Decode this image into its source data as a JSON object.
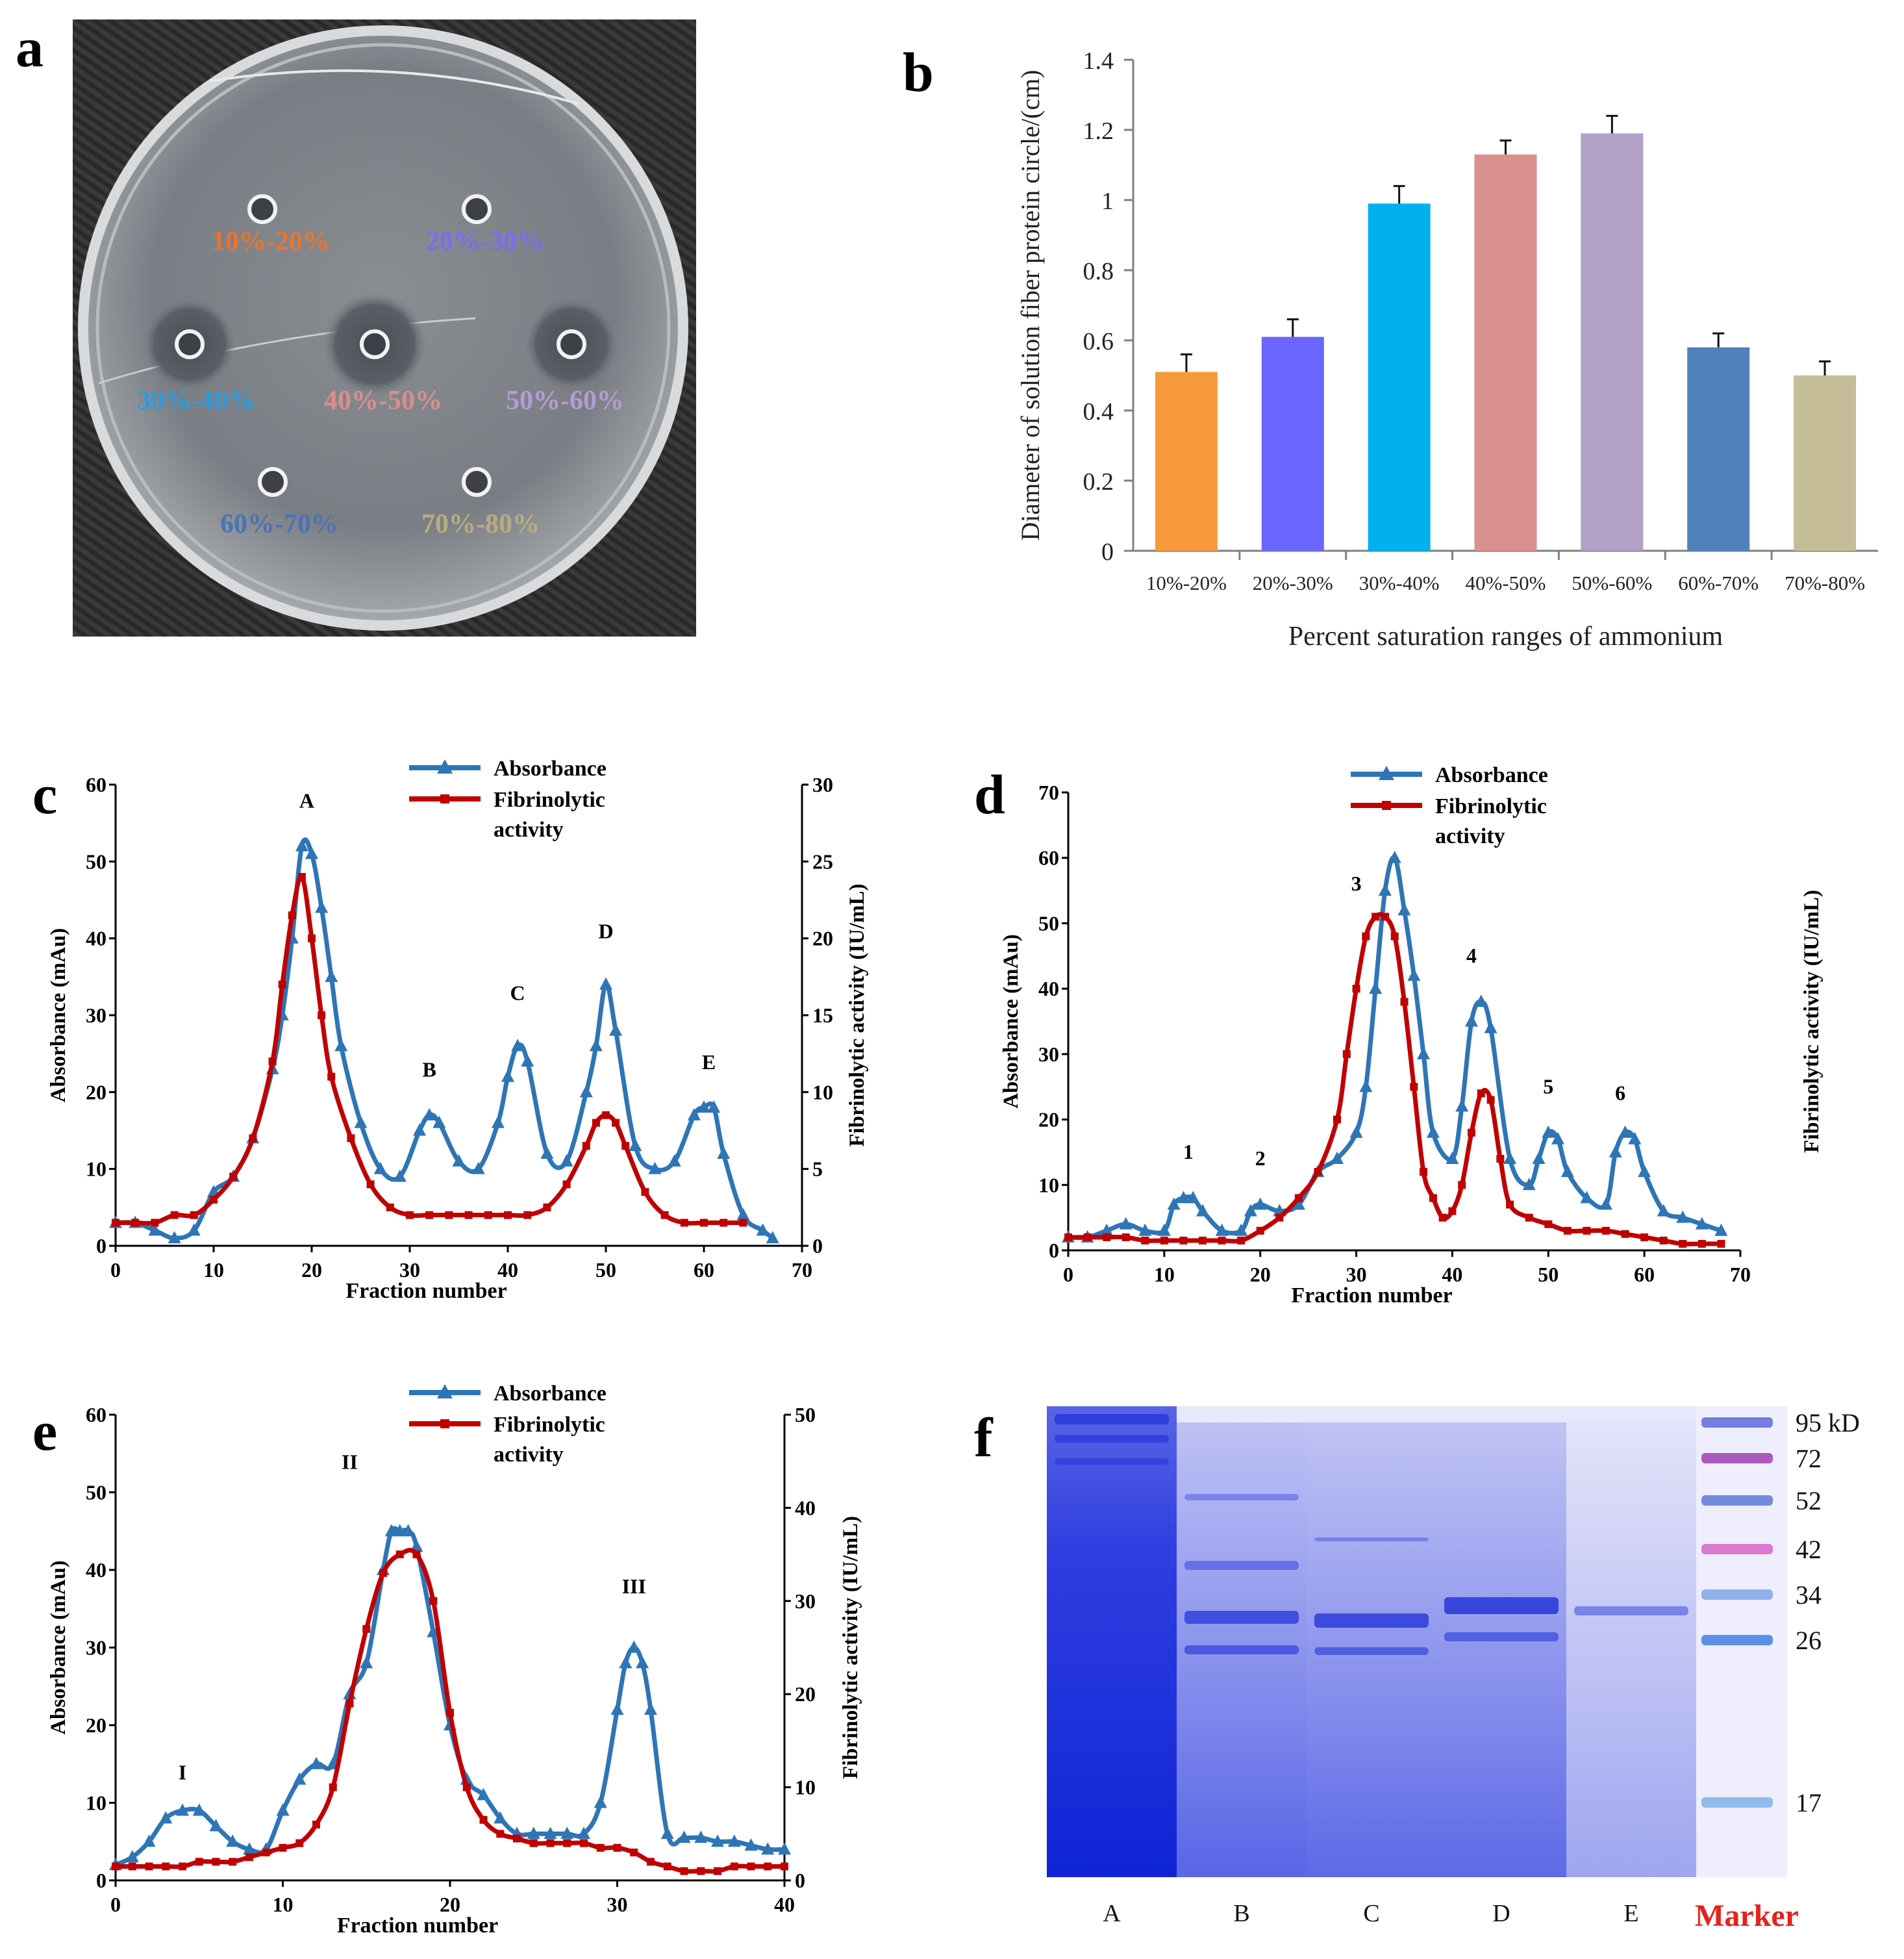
{
  "panels": {
    "a": {
      "label": "a",
      "ranges": [
        {
          "text": "10%-20%",
          "color": "#e8762b"
        },
        {
          "text": "20%-30%",
          "color": "#7a6cf0"
        },
        {
          "text": "30%-40%",
          "color": "#2d9be0"
        },
        {
          "text": "40%-50%",
          "color": "#d99089"
        },
        {
          "text": "50%-60%",
          "color": "#b59bd3"
        },
        {
          "text": "60%-70%",
          "color": "#4a73b7"
        },
        {
          "text": "70%-80%",
          "color": "#b9ac7c"
        }
      ]
    },
    "b": {
      "label": "b"
    },
    "c": {
      "label": "c"
    },
    "d": {
      "label": "d"
    },
    "e": {
      "label": "e"
    },
    "f": {
      "label": "f",
      "lanes": [
        "A",
        "B",
        "C",
        "D",
        "E"
      ],
      "marker_label": "Marker",
      "marker_label_color": "#e5221b",
      "mw_labels": [
        "95 kD",
        "72",
        "52",
        "42",
        "34",
        "26",
        "17"
      ]
    }
  },
  "chart_data": [
    {
      "id": "b",
      "type": "bar",
      "categories": [
        "10%-20%",
        "20%-30%",
        "30%-40%",
        "40%-50%",
        "50%-60%",
        "60%-70%",
        "70%-80%"
      ],
      "values": [
        0.51,
        0.61,
        0.99,
        1.13,
        1.19,
        0.58,
        0.5
      ],
      "errors": [
        0.05,
        0.05,
        0.05,
        0.04,
        0.05,
        0.04,
        0.04
      ],
      "colors": [
        "#f79a3c",
        "#6b66ff",
        "#00b0ef",
        "#d9908f",
        "#b2a0c6",
        "#4f81bd",
        "#c4bd97"
      ],
      "ylabel": "Diameter of solution fiber protein  circle/(cm)",
      "xlabel": "Percent saturation ranges of ammonium",
      "ylim": [
        0,
        1.4
      ],
      "yticks": [
        0,
        0.2,
        0.4,
        0.6,
        0.8,
        1,
        1.2,
        1.4
      ],
      "ytick_labels": [
        "0",
        "0.2",
        "0.4",
        "0.6",
        "0.8",
        "1",
        "1.2",
        "1.4"
      ]
    },
    {
      "id": "c",
      "type": "line",
      "xlabel": "Fraction number",
      "ylabel": "Absorbance (mAu)",
      "y2label": "Fibrinolytic  activity (IU/mL)",
      "xlim": [
        0,
        70
      ],
      "ylim": [
        0,
        60
      ],
      "y2lim": [
        0,
        30
      ],
      "xticks": [
        0,
        10,
        20,
        30,
        40,
        50,
        60,
        70
      ],
      "yticks": [
        0,
        10,
        20,
        30,
        40,
        50,
        60
      ],
      "y2ticks": [
        0,
        5,
        10,
        15,
        20,
        25,
        30
      ],
      "legend": [
        "Absorbance",
        "Fibrinolytic activity"
      ],
      "peak_labels": [
        {
          "text": "A",
          "x": 19.5,
          "y": 57
        },
        {
          "text": "B",
          "x": 32,
          "y": 22
        },
        {
          "text": "C",
          "x": 41,
          "y": 32
        },
        {
          "text": "D",
          "x": 50,
          "y": 40
        },
        {
          "text": "E",
          "x": 60.5,
          "y": 23
        }
      ],
      "series": [
        {
          "name": "Absorbance",
          "color": "#2e75b6",
          "marker": "triangle",
          "x": [
            0,
            2,
            4,
            6,
            8,
            10,
            12,
            14,
            16,
            17,
            18,
            19,
            20,
            21,
            22,
            23,
            25,
            27,
            29,
            31,
            32,
            33,
            35,
            37,
            39,
            40,
            41,
            42,
            44,
            46,
            48,
            49,
            50,
            51,
            53,
            55,
            57,
            59,
            60,
            61,
            62,
            64,
            66,
            67
          ],
          "y": [
            3,
            3,
            2,
            1,
            2,
            7,
            9,
            14,
            23,
            30,
            40,
            52,
            51,
            44,
            35,
            26,
            16,
            10,
            9,
            15,
            17,
            16,
            11,
            10,
            16,
            22,
            26,
            24,
            12,
            11,
            20,
            26,
            34,
            28,
            13,
            10,
            11,
            17,
            18,
            18,
            12,
            4,
            2,
            1
          ]
        },
        {
          "name": "Fibrinolytic activity",
          "color": "#c00000",
          "marker": "square",
          "x": [
            0,
            2,
            4,
            6,
            8,
            10,
            12,
            14,
            16,
            17,
            18,
            19,
            20,
            21,
            22,
            24,
            26,
            28,
            30,
            32,
            34,
            36,
            38,
            40,
            42,
            44,
            46,
            48,
            49,
            50,
            51,
            52,
            54,
            56,
            58,
            60,
            62,
            64
          ],
          "y": [
            1.5,
            1.5,
            1.5,
            2,
            2,
            3,
            4.5,
            7,
            12,
            17,
            21.5,
            24,
            20,
            15,
            11,
            7,
            4,
            2.5,
            2,
            2,
            2,
            2,
            2,
            2,
            2,
            2.5,
            4,
            6.5,
            8,
            8.5,
            8,
            6.5,
            3.5,
            2,
            1.5,
            1.5,
            1.5,
            1.5
          ]
        }
      ]
    },
    {
      "id": "d",
      "type": "line",
      "xlabel": "Fraction number",
      "ylabel": "Absorbance (mAu)",
      "y2label": "Fibrinolytic  activity (IU/mL)",
      "xlim": [
        0,
        70
      ],
      "ylim": [
        0,
        70
      ],
      "xticks": [
        0,
        10,
        20,
        30,
        40,
        50,
        60,
        70
      ],
      "yticks": [
        0,
        10,
        20,
        30,
        40,
        50,
        60,
        70
      ],
      "legend": [
        "Absorbance",
        "Fibrinolytic activity"
      ],
      "peak_labels": [
        {
          "text": "1",
          "x": 12.5,
          "y": 14
        },
        {
          "text": "2",
          "x": 20,
          "y": 13
        },
        {
          "text": "3",
          "x": 30,
          "y": 55
        },
        {
          "text": "4",
          "x": 42,
          "y": 44
        },
        {
          "text": "5",
          "x": 50,
          "y": 24
        },
        {
          "text": "6",
          "x": 57.5,
          "y": 23
        }
      ],
      "series": [
        {
          "name": "Absorbance",
          "color": "#2e75b6",
          "marker": "triangle",
          "x": [
            0,
            2,
            4,
            6,
            8,
            10,
            11,
            12,
            13,
            14,
            16,
            18,
            19,
            20,
            22,
            24,
            26,
            28,
            30,
            31,
            32,
            33,
            34,
            35,
            36,
            37,
            38,
            40,
            41,
            42,
            43,
            44,
            46,
            48,
            49,
            50,
            51,
            52,
            54,
            56,
            57,
            58,
            59,
            60,
            62,
            64,
            66,
            68
          ],
          "y": [
            2,
            2,
            3,
            4,
            3,
            3,
            7,
            8,
            8,
            6,
            3,
            3,
            6,
            7,
            6,
            7,
            12,
            14,
            18,
            25,
            40,
            55,
            60,
            52,
            42,
            30,
            18,
            14,
            22,
            35,
            38,
            34,
            14,
            10,
            14,
            18,
            17,
            12,
            8,
            7,
            15,
            18,
            17,
            12,
            6,
            5,
            4,
            3
          ]
        },
        {
          "name": "Fibrinolytic activity",
          "color": "#c00000",
          "marker": "square",
          "x": [
            0,
            2,
            4,
            6,
            8,
            10,
            12,
            14,
            16,
            18,
            20,
            22,
            24,
            26,
            28,
            29,
            30,
            31,
            32,
            33,
            34,
            35,
            36,
            37,
            38,
            39,
            40,
            41,
            42,
            43,
            44,
            45,
            46,
            48,
            50,
            52,
            54,
            56,
            58,
            60,
            62,
            64,
            66,
            68
          ],
          "y": [
            2,
            2,
            2,
            2,
            1.5,
            1.5,
            1.5,
            1.5,
            1.5,
            1.5,
            3,
            5,
            8,
            12,
            20,
            30,
            40,
            48,
            51,
            51,
            48,
            38,
            25,
            12,
            8,
            5,
            6,
            10,
            18,
            24,
            23,
            14,
            7,
            5,
            4,
            3,
            3,
            3,
            2.5,
            2,
            1.5,
            1,
            1,
            1
          ]
        }
      ]
    },
    {
      "id": "e",
      "type": "line",
      "xlabel": "Fraction number",
      "ylabel": "Absorbance (mAu)",
      "y2label": "Fibrinolytic  activity (IU/mL)",
      "xlim": [
        0,
        40
      ],
      "ylim": [
        0,
        60
      ],
      "y2lim": [
        0,
        50
      ],
      "xticks": [
        0,
        10,
        20,
        30,
        40
      ],
      "yticks": [
        0,
        10,
        20,
        30,
        40,
        50,
        60
      ],
      "y2ticks": [
        0,
        10,
        20,
        30,
        40,
        50
      ],
      "legend": [
        "Absorbance",
        "Fibrinolytic activity"
      ],
      "peak_labels": [
        {
          "text": "I",
          "x": 4,
          "y": 13
        },
        {
          "text": "II",
          "x": 14,
          "y": 53
        },
        {
          "text": "III",
          "x": 31,
          "y": 37
        }
      ],
      "series": [
        {
          "name": "Absorbance",
          "color": "#2e75b6",
          "marker": "triangle",
          "x": [
            0,
            1,
            2,
            3,
            4,
            5,
            6,
            7,
            8,
            9,
            10,
            11,
            12,
            13,
            14,
            15,
            16,
            16.5,
            17,
            17.5,
            18,
            19,
            20,
            21,
            22,
            23,
            24,
            25,
            26,
            27,
            28,
            29,
            30,
            30.5,
            31,
            31.5,
            32,
            33,
            34,
            35,
            36,
            37,
            38,
            39,
            40
          ],
          "y": [
            2,
            3,
            5,
            8,
            9,
            9,
            7,
            5,
            4,
            4,
            9,
            13,
            15,
            15,
            24,
            28,
            40,
            45,
            45,
            45,
            43,
            32,
            20,
            13,
            11,
            8,
            6,
            6,
            6,
            6,
            6,
            10,
            22,
            28,
            30,
            28,
            22,
            6,
            5.5,
            5.5,
            5,
            5,
            4.5,
            4,
            4
          ]
        },
        {
          "name": "Fibrinolytic activity",
          "color": "#c00000",
          "marker": "square",
          "x": [
            0,
            1,
            2,
            3,
            4,
            5,
            6,
            7,
            8,
            9,
            10,
            11,
            12,
            13,
            14,
            15,
            16,
            17,
            18,
            19,
            20,
            21,
            22,
            23,
            24,
            25,
            26,
            27,
            28,
            29,
            30,
            31,
            32,
            33,
            34,
            35,
            36,
            37,
            38,
            39,
            40
          ],
          "y": [
            1.5,
            1.5,
            1.5,
            1.5,
            1.5,
            2,
            2,
            2,
            2.5,
            3,
            3.5,
            4,
            6,
            10,
            19,
            27,
            33,
            35,
            35,
            30,
            18,
            10,
            6.5,
            5,
            4.5,
            4,
            4,
            4,
            4,
            3.5,
            3.5,
            3,
            2,
            1.5,
            1,
            1,
            1,
            1.5,
            1.5,
            1.5,
            1.5
          ]
        }
      ]
    }
  ]
}
